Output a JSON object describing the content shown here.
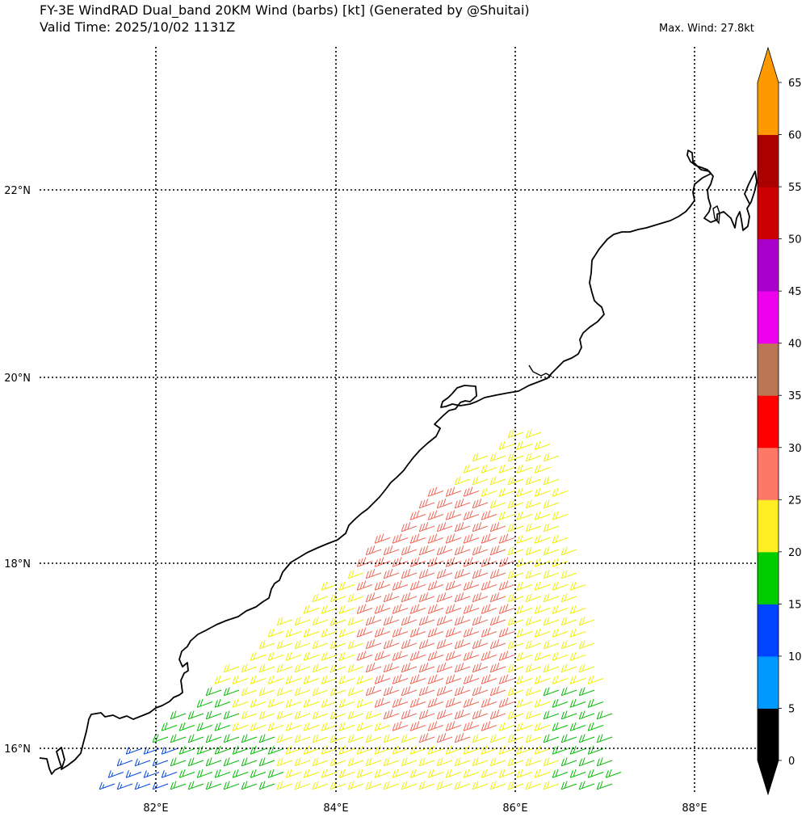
{
  "header": {
    "title_line1": "FY-3E WindRAD Dual_band 20KM Wind (barbs) [kt] (Generated by @Shuitai)",
    "title_line2": "Valid Time: 2025/10/02 1131Z",
    "max_wind": "Max. Wind: 27.8kt"
  },
  "map": {
    "lon_labels": [
      "82°E",
      "84°E",
      "86°E",
      "88°E"
    ],
    "lat_labels": [
      "22°N",
      "20°N",
      "18°N",
      "16°N"
    ],
    "lon_values": [
      82,
      84,
      86,
      88
    ],
    "lat_values": [
      22,
      20,
      18,
      16
    ]
  },
  "colorbar": {
    "levels": [
      "0",
      "5",
      "10",
      "15",
      "20",
      "25",
      "30",
      "35",
      "40",
      "45",
      "50",
      "55",
      "60",
      "65"
    ],
    "colors": [
      "#000000",
      "#0099ff",
      "#0044ff",
      "#00cc00",
      "#ffee22",
      "#ff7766",
      "#ff0000",
      "#bb7755",
      "#ee00ee",
      "#aa00cc",
      "#cc0000",
      "#aa0000",
      "#ff9900"
    ],
    "under_color": "#000000",
    "over_color": "#ff9900",
    "unit": "kt"
  },
  "wind_field": {
    "description_colors": {
      "15_20": "#00bb00",
      "10_15": "#0044dd",
      "20_25": "#eeee00",
      "25_30": "#ee6655"
    },
    "direction": "westerly-southwesterly"
  }
}
